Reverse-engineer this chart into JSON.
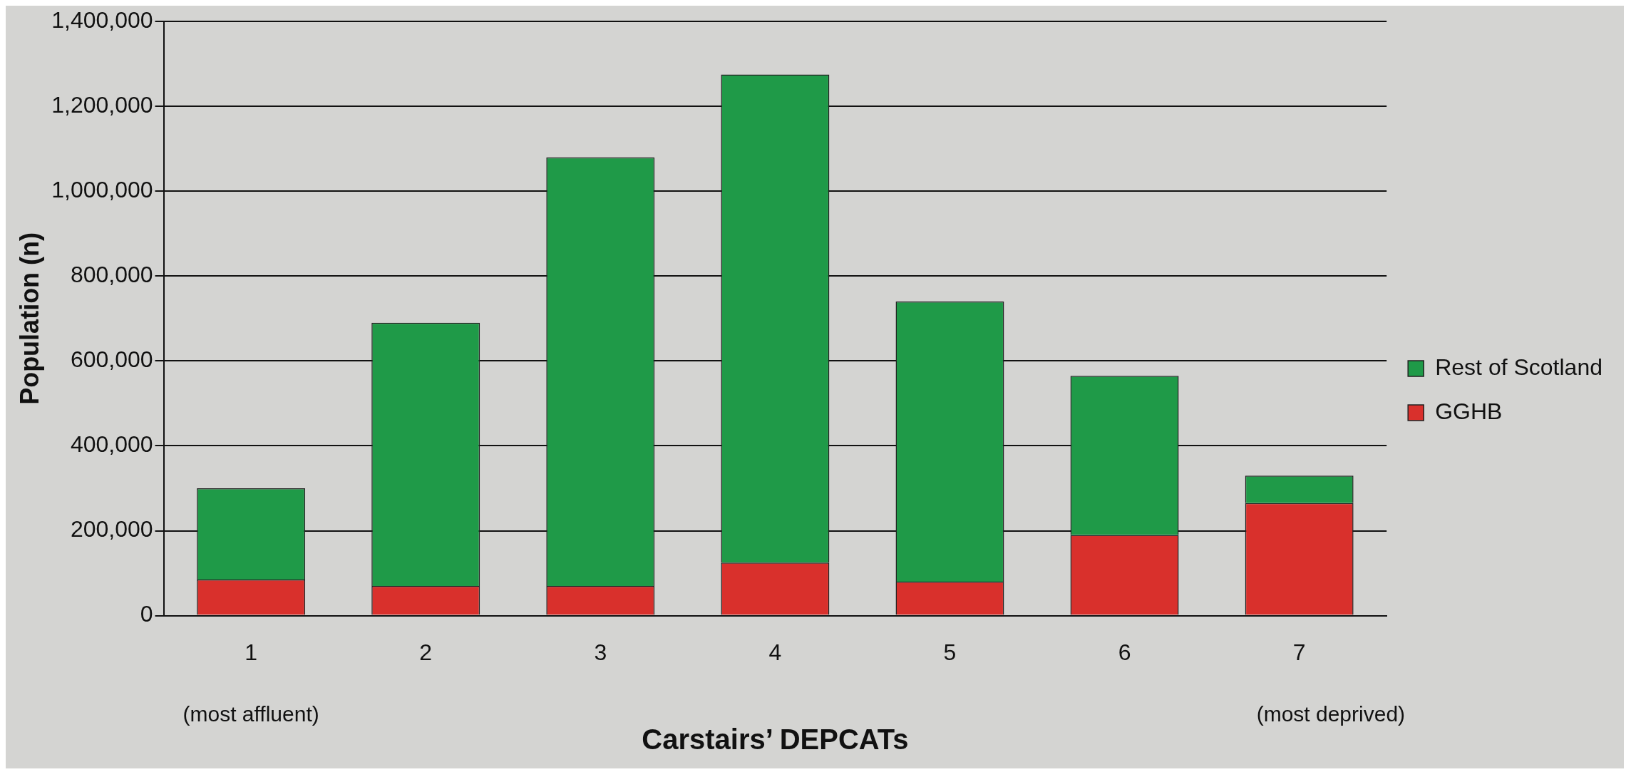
{
  "chart_data": {
    "type": "bar",
    "stacked": true,
    "xlabel": "Carstairs’ DEPCATs",
    "ylabel": "Population (n)",
    "categories": [
      "1",
      "2",
      "3",
      "4",
      "5",
      "6",
      "7"
    ],
    "series": [
      {
        "name": "GGHB",
        "color": "#d9302c",
        "values": [
          85000,
          70000,
          70000,
          125000,
          80000,
          190000,
          265000
        ]
      },
      {
        "name": "Rest of Scotland",
        "color": "#1f9a48",
        "values": [
          215000,
          620000,
          1010000,
          1150000,
          660000,
          375000,
          65000
        ]
      }
    ],
    "ylim": [
      0,
      1400000
    ],
    "yticks": [
      0,
      {
        "value": 200000,
        "label": "200,000"
      },
      {
        "value": 400000,
        "label": "400,000"
      },
      {
        "value": 600000,
        "label": "600,000"
      },
      {
        "value": 800000,
        "label": "800,000"
      },
      {
        "value": 1000000,
        "label": "1,000,000"
      },
      {
        "value": 1200000,
        "label": "1,200,000"
      },
      {
        "value": 1400000,
        "label": "1,400,000"
      }
    ],
    "grid": "y",
    "legend": "right",
    "annotations": [
      "(most affluent)",
      "(most deprived)"
    ]
  }
}
